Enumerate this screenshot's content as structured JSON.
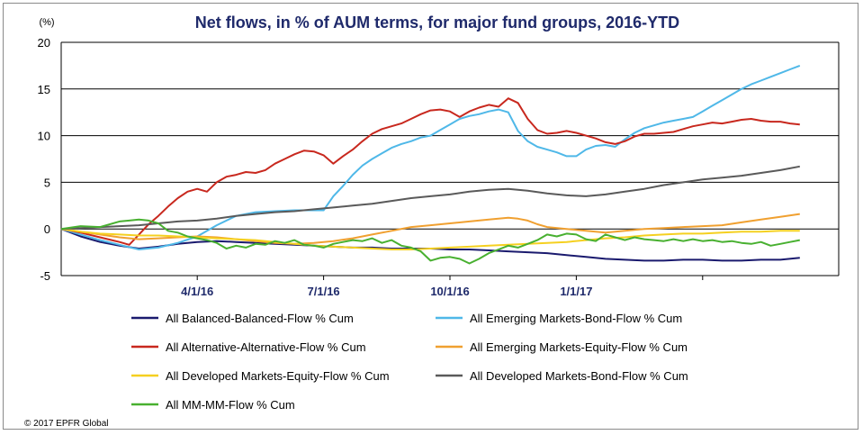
{
  "chart_data": {
    "type": "line",
    "title": "Net flows, in % of AUM terms, for major fund groups, 2016-YTD",
    "yunit": "(%)",
    "ylim": [
      -5,
      20
    ],
    "yticks": [
      -5,
      0,
      5,
      10,
      15,
      20
    ],
    "xrange": [
      0,
      80
    ],
    "xticks": [
      {
        "x": 14,
        "label": "4/1/16"
      },
      {
        "x": 27,
        "label": "7/1/16"
      },
      {
        "x": 40,
        "label": "10/1/16"
      },
      {
        "x": 53,
        "label": "1/1/17"
      }
    ],
    "series": [
      {
        "name": "All Balanced-Balanced-Flow % Cum",
        "color": "#1a1a6e",
        "x": [
          0,
          2,
          4,
          6,
          8,
          10,
          12,
          14,
          16,
          18,
          20,
          22,
          24,
          26,
          28,
          30,
          32,
          34,
          36,
          38,
          40,
          42,
          44,
          46,
          48,
          50,
          52,
          54,
          56,
          58,
          60,
          62,
          64,
          66,
          68,
          70,
          72,
          74,
          76
        ],
        "values": [
          0,
          -0.8,
          -1.4,
          -1.8,
          -2.1,
          -1.9,
          -1.6,
          -1.4,
          -1.3,
          -1.4,
          -1.5,
          -1.6,
          -1.7,
          -1.8,
          -1.9,
          -2.0,
          -2.0,
          -2.1,
          -2.1,
          -2.1,
          -2.2,
          -2.2,
          -2.3,
          -2.4,
          -2.5,
          -2.6,
          -2.8,
          -3.0,
          -3.2,
          -3.3,
          -3.4,
          -3.4,
          -3.3,
          -3.3,
          -3.4,
          -3.4,
          -3.3,
          -3.3,
          -3.1
        ]
      },
      {
        "name": "All Emerging Markets-Bond-Flow % Cum",
        "color": "#4fb8e8",
        "x": [
          0,
          2,
          4,
          6,
          8,
          10,
          12,
          14,
          16,
          18,
          20,
          22,
          24,
          26,
          27,
          28,
          29,
          30,
          31,
          32,
          33,
          34,
          35,
          36,
          37,
          38,
          39,
          40,
          41,
          42,
          43,
          44,
          45,
          46,
          47,
          48,
          49,
          50,
          51,
          52,
          53,
          54,
          55,
          56,
          57,
          58,
          59,
          60,
          61,
          62,
          63,
          64,
          65,
          66,
          67,
          68,
          69,
          70,
          71,
          72,
          73,
          74,
          75,
          76
        ],
        "values": [
          0,
          -0.6,
          -1.2,
          -1.7,
          -2.2,
          -2.0,
          -1.5,
          -0.8,
          0.4,
          1.4,
          1.8,
          1.9,
          2.0,
          2.0,
          2.0,
          3.5,
          4.6,
          5.8,
          6.8,
          7.5,
          8.1,
          8.7,
          9.1,
          9.4,
          9.8,
          10.0,
          10.6,
          11.2,
          11.8,
          12.1,
          12.3,
          12.6,
          12.8,
          12.5,
          10.5,
          9.4,
          8.8,
          8.5,
          8.2,
          7.8,
          7.8,
          8.5,
          8.9,
          9.0,
          8.8,
          9.6,
          10.3,
          10.8,
          11.1,
          11.4,
          11.6,
          11.8,
          12.0,
          12.6,
          13.2,
          13.8,
          14.4,
          15.0,
          15.5,
          15.9,
          16.3,
          16.7,
          17.1,
          17.5
        ]
      },
      {
        "name": "All Alternative-Alternative-Flow % Cum",
        "color": "#c8281e",
        "x": [
          0,
          2,
          4,
          6,
          7,
          8,
          9,
          10,
          11,
          12,
          13,
          14,
          15,
          16,
          17,
          18,
          19,
          20,
          21,
          22,
          23,
          24,
          25,
          26,
          27,
          28,
          29,
          30,
          31,
          32,
          33,
          34,
          35,
          36,
          37,
          38,
          39,
          40,
          41,
          42,
          43,
          44,
          45,
          46,
          47,
          48,
          49,
          50,
          51,
          52,
          53,
          54,
          55,
          56,
          57,
          58,
          59,
          60,
          61,
          62,
          63,
          64,
          65,
          66,
          67,
          68,
          69,
          70,
          71,
          72,
          73,
          74,
          75,
          76
        ],
        "values": [
          0,
          -0.4,
          -0.9,
          -1.4,
          -1.7,
          -0.6,
          0.5,
          1.4,
          2.4,
          3.3,
          4.0,
          4.3,
          4.0,
          5.0,
          5.6,
          5.8,
          6.1,
          6.0,
          6.3,
          7.0,
          7.5,
          8.0,
          8.4,
          8.3,
          7.9,
          7.0,
          7.8,
          8.5,
          9.4,
          10.2,
          10.7,
          11.0,
          11.3,
          11.8,
          12.3,
          12.7,
          12.8,
          12.6,
          12.0,
          12.6,
          13.0,
          13.3,
          13.1,
          14.0,
          13.5,
          11.8,
          10.6,
          10.2,
          10.3,
          10.5,
          10.3,
          10.0,
          9.7,
          9.3,
          9.1,
          9.4,
          9.9,
          10.2,
          10.2,
          10.3,
          10.4,
          10.7,
          11.0,
          11.2,
          11.4,
          11.3,
          11.5,
          11.7,
          11.8,
          11.6,
          11.5,
          11.5,
          11.3,
          11.2
        ]
      },
      {
        "name": "All Emerging Markets-Equity-Flow % Cum",
        "color": "#f0a030",
        "x": [
          0,
          2,
          4,
          6,
          8,
          10,
          12,
          14,
          16,
          18,
          20,
          22,
          24,
          26,
          28,
          30,
          32,
          34,
          36,
          38,
          40,
          42,
          44,
          46,
          47,
          48,
          49,
          50,
          52,
          54,
          56,
          58,
          60,
          62,
          64,
          66,
          68,
          70,
          72,
          74,
          76
        ],
        "values": [
          0,
          -0.3,
          -0.6,
          -0.9,
          -1.1,
          -1.0,
          -0.9,
          -0.8,
          -0.9,
          -1.1,
          -1.3,
          -1.5,
          -1.6,
          -1.5,
          -1.3,
          -1.0,
          -0.6,
          -0.2,
          0.2,
          0.4,
          0.6,
          0.8,
          1.0,
          1.2,
          1.1,
          0.9,
          0.5,
          0.2,
          0.0,
          -0.2,
          -0.4,
          -0.2,
          0.0,
          0.1,
          0.2,
          0.3,
          0.4,
          0.7,
          1.0,
          1.3,
          1.6
        ]
      },
      {
        "name": "All Developed Markets-Equity-Flow % Cum",
        "color": "#f5d020",
        "x": [
          0,
          2,
          4,
          6,
          8,
          10,
          12,
          14,
          16,
          18,
          20,
          22,
          24,
          26,
          28,
          30,
          32,
          34,
          36,
          38,
          40,
          42,
          44,
          46,
          48,
          50,
          52,
          54,
          56,
          58,
          60,
          62,
          64,
          66,
          68,
          70,
          72,
          74,
          76
        ],
        "values": [
          0,
          -0.3,
          -0.5,
          -0.6,
          -0.7,
          -0.7,
          -0.8,
          -0.9,
          -1.0,
          -1.1,
          -1.2,
          -1.4,
          -1.6,
          -1.8,
          -1.9,
          -2.0,
          -2.1,
          -2.2,
          -2.2,
          -2.1,
          -2.0,
          -1.9,
          -1.8,
          -1.7,
          -1.6,
          -1.5,
          -1.4,
          -1.2,
          -1.0,
          -0.9,
          -0.7,
          -0.6,
          -0.5,
          -0.5,
          -0.4,
          -0.3,
          -0.3,
          -0.2,
          -0.2
        ]
      },
      {
        "name": "All Developed Markets-Bond-Flow % Cum",
        "color": "#5a5a5a",
        "x": [
          0,
          2,
          4,
          6,
          8,
          10,
          12,
          14,
          16,
          18,
          20,
          22,
          24,
          26,
          28,
          30,
          32,
          34,
          36,
          38,
          40,
          42,
          44,
          46,
          48,
          50,
          52,
          54,
          56,
          58,
          60,
          62,
          64,
          66,
          68,
          70,
          72,
          74,
          76
        ],
        "values": [
          0,
          0.1,
          0.2,
          0.3,
          0.4,
          0.6,
          0.8,
          0.9,
          1.1,
          1.4,
          1.6,
          1.8,
          1.9,
          2.1,
          2.3,
          2.5,
          2.7,
          3.0,
          3.3,
          3.5,
          3.7,
          4.0,
          4.2,
          4.3,
          4.1,
          3.8,
          3.6,
          3.5,
          3.7,
          4.0,
          4.3,
          4.7,
          5.0,
          5.3,
          5.5,
          5.7,
          6.0,
          6.3,
          6.7
        ]
      },
      {
        "name": "All MM-MM-Flow % Cum",
        "color": "#48b030",
        "x": [
          0,
          2,
          4,
          6,
          7,
          8,
          9,
          10,
          11,
          12,
          13,
          14,
          15,
          16,
          17,
          18,
          19,
          20,
          21,
          22,
          23,
          24,
          25,
          26,
          27,
          28,
          29,
          30,
          31,
          32,
          33,
          34,
          35,
          36,
          37,
          38,
          39,
          40,
          41,
          42,
          43,
          44,
          45,
          46,
          47,
          48,
          49,
          50,
          51,
          52,
          53,
          54,
          55,
          56,
          57,
          58,
          59,
          60,
          61,
          62,
          63,
          64,
          65,
          66,
          67,
          68,
          69,
          70,
          71,
          72,
          73,
          74,
          75,
          76
        ],
        "values": [
          0,
          0.3,
          0.2,
          0.8,
          0.9,
          1.0,
          0.9,
          0.6,
          -0.2,
          -0.4,
          -0.8,
          -1.0,
          -1.2,
          -1.5,
          -2.1,
          -1.8,
          -2.0,
          -1.6,
          -1.7,
          -1.3,
          -1.5,
          -1.2,
          -1.7,
          -1.8,
          -2.0,
          -1.6,
          -1.4,
          -1.2,
          -1.3,
          -1.0,
          -1.5,
          -1.2,
          -1.8,
          -2.0,
          -2.4,
          -3.4,
          -3.1,
          -3.0,
          -3.2,
          -3.7,
          -3.2,
          -2.6,
          -2.2,
          -1.8,
          -2.0,
          -1.6,
          -1.2,
          -0.6,
          -0.8,
          -0.5,
          -0.6,
          -1.1,
          -1.3,
          -0.6,
          -0.9,
          -1.2,
          -0.9,
          -1.1,
          -1.2,
          -1.3,
          -1.1,
          -1.3,
          -1.1,
          -1.3,
          -1.2,
          -1.4,
          -1.3,
          -1.5,
          -1.6,
          -1.4,
          -1.8,
          -1.6,
          -1.4,
          -1.2
        ]
      }
    ]
  },
  "copyright": "© 2017 EPFR Global"
}
